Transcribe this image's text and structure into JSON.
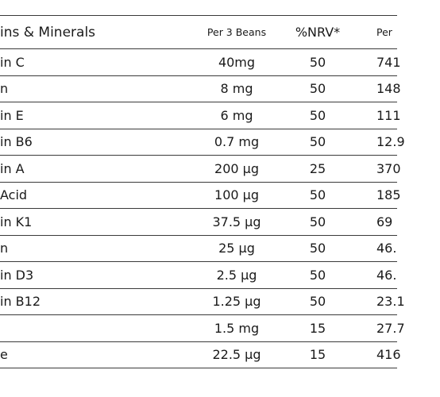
{
  "table": {
    "headers": {
      "name": "ins & Minerals",
      "per_bean": "Per 3 Beans",
      "nrv": "%NRV*",
      "per_extra": "Per"
    },
    "rows": [
      {
        "name": "in C",
        "per_bean": "40mg",
        "nrv": "50",
        "per_extra": "741"
      },
      {
        "name": "n",
        "per_bean": "8 mg",
        "nrv": "50",
        "per_extra": "148"
      },
      {
        "name": "in E",
        "per_bean": "6 mg",
        "nrv": "50",
        "per_extra": "111"
      },
      {
        "name": "in B6",
        "per_bean": "0.7 mg",
        "nrv": "50",
        "per_extra": "12.9"
      },
      {
        "name": "in A",
        "per_bean": "200 µg",
        "nrv": "25",
        "per_extra": "370"
      },
      {
        "name": "Acid",
        "per_bean": "100 µg",
        "nrv": "50",
        "per_extra": "185"
      },
      {
        "name": "in K1",
        "per_bean": "37.5 µg",
        "nrv": "50",
        "per_extra": "69"
      },
      {
        "name": "n",
        "per_bean": "25 µg",
        "nrv": "50",
        "per_extra": "46."
      },
      {
        "name": "in D3",
        "per_bean": "2.5 µg",
        "nrv": "50",
        "per_extra": "46."
      },
      {
        "name": "in B12",
        "per_bean": "1.25 µg",
        "nrv": "50",
        "per_extra": "23.1"
      },
      {
        "name": "",
        "per_bean": "1.5 mg",
        "nrv": "15",
        "per_extra": "27.7"
      },
      {
        "name": "e",
        "per_bean": "22.5 µg",
        "nrv": "15",
        "per_extra": "416"
      }
    ]
  }
}
